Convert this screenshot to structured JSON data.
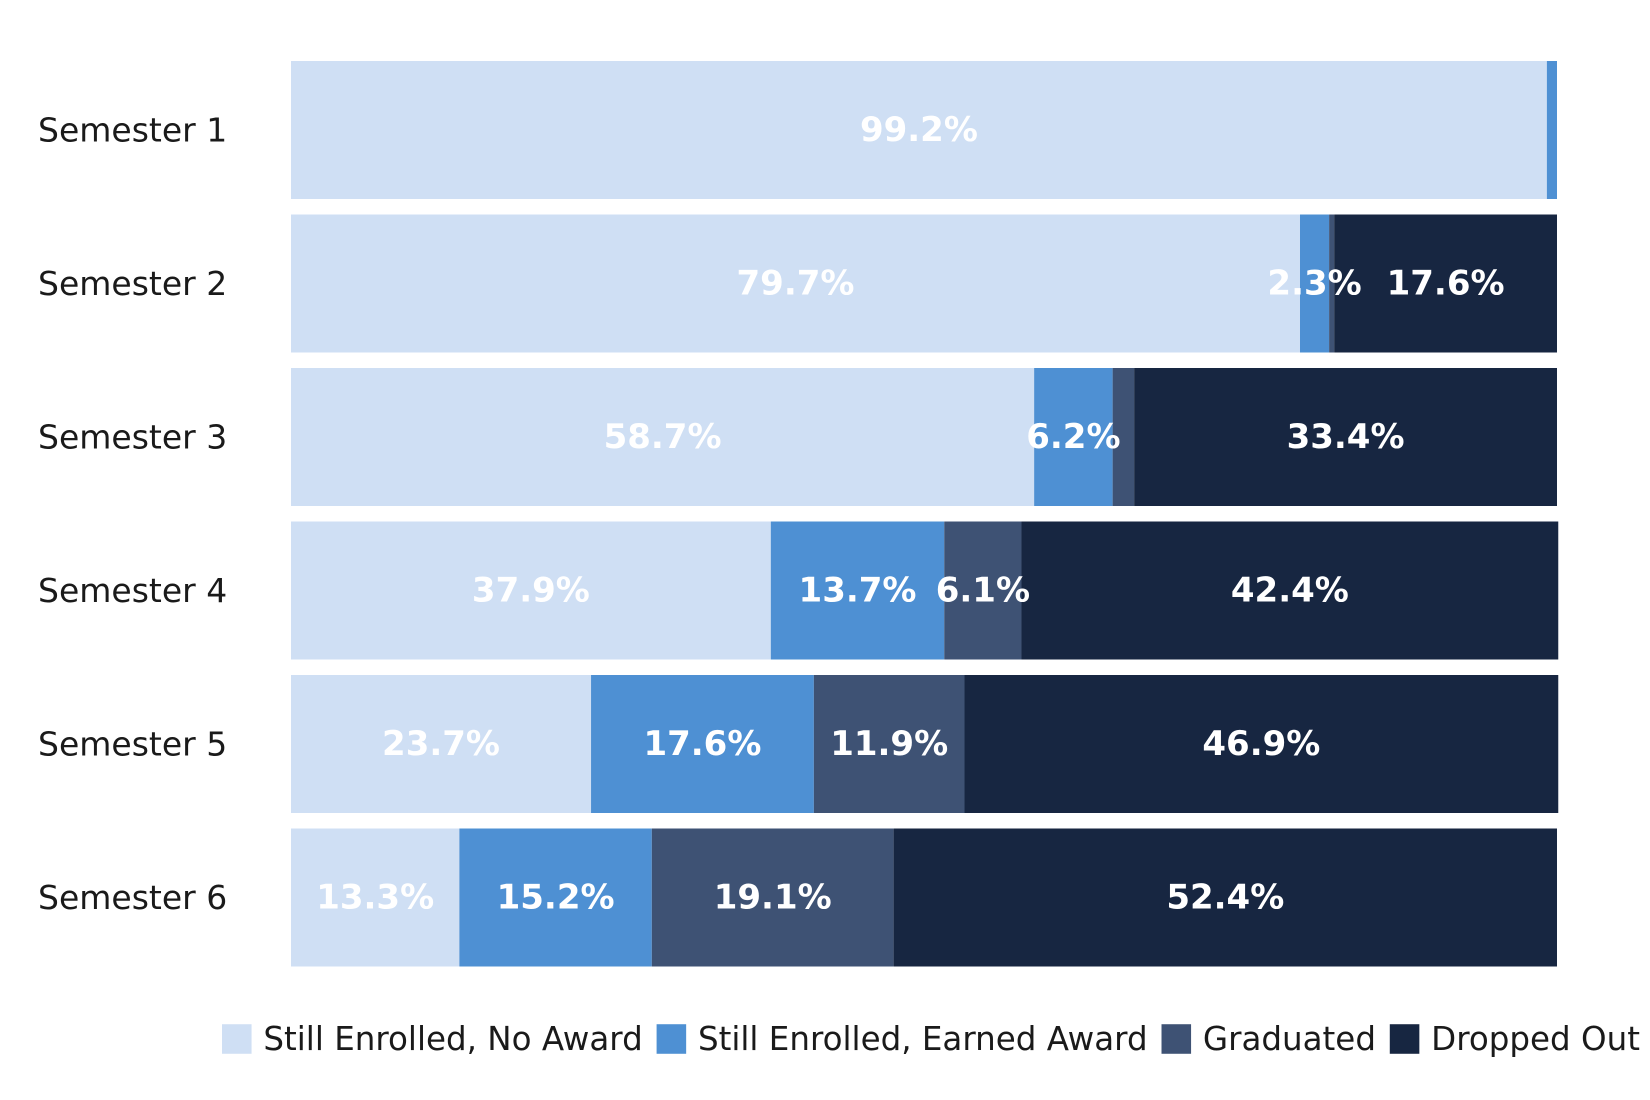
{
  "chart_data": {
    "type": "bar",
    "orientation": "horizontal",
    "stacked": true,
    "title": "",
    "xlabel": "",
    "ylabel": "",
    "xlim": [
      0,
      100
    ],
    "grid": false,
    "legend_position": "bottom",
    "categories": [
      "Semester 1",
      "Semester 2",
      "Semester 3",
      "Semester 4",
      "Semester 5",
      "Semester 6"
    ],
    "series": [
      {
        "name": "Still Enrolled, No Award",
        "color": "#cfdff4",
        "values": [
          99.2,
          79.7,
          58.7,
          37.9,
          23.7,
          13.3
        ],
        "labels": [
          "99.2%",
          "79.7%",
          "58.7%",
          "37.9%",
          "23.7%",
          "13.3%"
        ]
      },
      {
        "name": "Still Enrolled, Earned Award",
        "color": "#4e90d3",
        "values": [
          0.8,
          2.3,
          6.2,
          13.7,
          17.6,
          15.2
        ],
        "labels": [
          "",
          "2.3%",
          "6.2%",
          "13.7%",
          "17.6%",
          "15.2%"
        ]
      },
      {
        "name": "Graduated",
        "color": "#3e5274",
        "values": [
          0.0,
          0.4,
          1.7,
          6.1,
          11.9,
          19.1
        ],
        "labels": [
          "",
          "",
          "",
          "6.1%",
          "11.9%",
          "19.1%"
        ]
      },
      {
        "name": "Dropped Out",
        "color": "#172641",
        "values": [
          0.0,
          17.6,
          33.4,
          42.4,
          46.9,
          52.4
        ],
        "labels": [
          "",
          "17.6%",
          "33.4%",
          "42.4%",
          "46.9%",
          "52.4%"
        ]
      }
    ]
  }
}
